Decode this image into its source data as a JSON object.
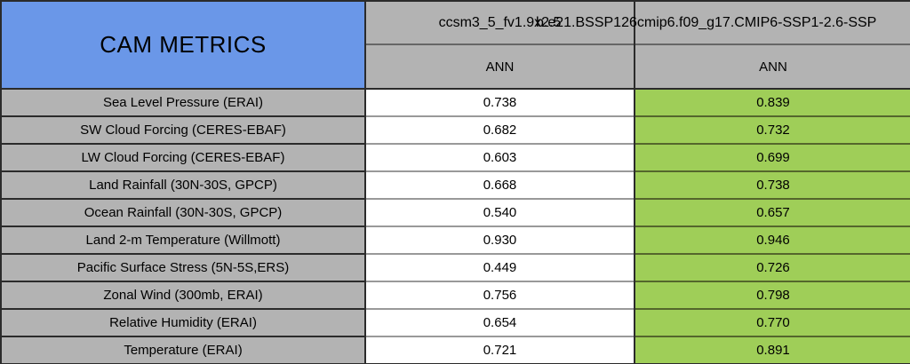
{
  "title": "CAM METRICS",
  "header": {
    "columns": [
      {
        "model": "ccsm3_5_fv1.9x2.5",
        "season": "ANN"
      },
      {
        "model": "b.e21.BSSP126cmip6.f09_g17.CMIP6-SSP1-2.6-SSP",
        "season": "ANN"
      }
    ]
  },
  "rows": [
    {
      "metric": "Sea Level Pressure (ERAI)",
      "values": [
        "0.738",
        "0.839"
      ]
    },
    {
      "metric": "SW Cloud Forcing (CERES-EBAF)",
      "values": [
        "0.682",
        "0.732"
      ]
    },
    {
      "metric": "LW Cloud Forcing (CERES-EBAF)",
      "values": [
        "0.603",
        "0.699"
      ]
    },
    {
      "metric": "Land Rainfall (30N-30S, GPCP)",
      "values": [
        "0.668",
        "0.738"
      ]
    },
    {
      "metric": "Ocean Rainfall (30N-30S, GPCP)",
      "values": [
        "0.540",
        "0.657"
      ]
    },
    {
      "metric": "Land 2-m Temperature (Willmott)",
      "values": [
        "0.930",
        "0.946"
      ]
    },
    {
      "metric": "Pacific Surface Stress (5N-5S,ERS)",
      "values": [
        "0.449",
        "0.726"
      ]
    },
    {
      "metric": "Zonal Wind (300mb, ERAI)",
      "values": [
        "0.756",
        "0.798"
      ]
    },
    {
      "metric": "Relative Humidity (ERAI)",
      "values": [
        "0.654",
        "0.770"
      ]
    },
    {
      "metric": "Temperature (ERAI)",
      "values": [
        "0.721",
        "0.891"
      ]
    }
  ],
  "colors": {
    "header-blue": "#6A97E8",
    "cell-gray": "#B3B3B3",
    "highlight-green": "#9FCE58",
    "border-dark": "#2b2b2b",
    "border-mid": "#666666",
    "border-light": "#999999",
    "border-green": "#54662c"
  },
  "chart_data": {
    "type": "table",
    "title": "CAM METRICS",
    "column_groups": [
      "ccsm3_5_fv1.9x2.5",
      "b.e21.BSSP126cmip6.f09_g17.CMIP6-SSP1-2.6-SSP"
    ],
    "subcolumns": [
      "ANN",
      "ANN"
    ],
    "row_labels": [
      "Sea Level Pressure (ERAI)",
      "SW Cloud Forcing (CERES-EBAF)",
      "LW Cloud Forcing (CERES-EBAF)",
      "Land Rainfall (30N-30S, GPCP)",
      "Ocean Rainfall (30N-30S, GPCP)",
      "Land 2-m Temperature (Willmott)",
      "Pacific Surface Stress (5N-5S,ERS)",
      "Zonal Wind (300mb, ERAI)",
      "Relative Humidity (ERAI)",
      "Temperature (ERAI)"
    ],
    "series": [
      {
        "name": "ccsm3_5_fv1.9x2.5 ANN",
        "values": [
          0.738,
          0.682,
          0.603,
          0.668,
          0.54,
          0.93,
          0.449,
          0.756,
          0.654,
          0.721
        ]
      },
      {
        "name": "b.e21.BSSP126cmip6.f09_g17.CMIP6-SSP1-2.6-SSP ANN",
        "values": [
          0.839,
          0.732,
          0.699,
          0.738,
          0.657,
          0.946,
          0.726,
          0.798,
          0.77,
          0.891
        ]
      }
    ],
    "highlighted_series_index": 1
  }
}
